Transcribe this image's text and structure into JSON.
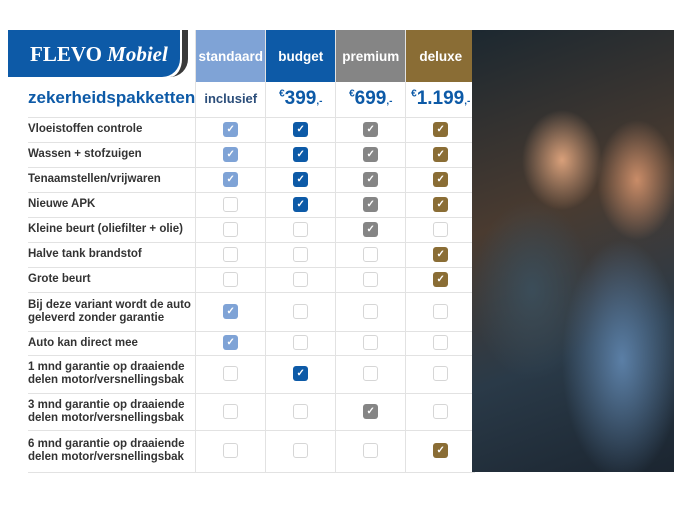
{
  "logo": {
    "brand": "FLEVO",
    "brand_italic": "Mobiel"
  },
  "title": "zekerheidspakketten",
  "colors": {
    "standaard": "#7fa3d6",
    "budget": "#0d5aa7",
    "premium": "#858585",
    "deluxe": "#8a6d35"
  },
  "columns": [
    {
      "key": "standaard",
      "label": "standaard",
      "price": "inclusief"
    },
    {
      "key": "budget",
      "label": "budget",
      "currency": "€",
      "price": "399",
      "suffix": ",-"
    },
    {
      "key": "premium",
      "label": "premium",
      "currency": "€",
      "price": "699",
      "suffix": ",-"
    },
    {
      "key": "deluxe",
      "label": "deluxe",
      "currency": "€",
      "price": "1.199",
      "suffix": ",-"
    }
  ],
  "rows": [
    {
      "label": "Vloeistoffen controle",
      "checks": [
        true,
        true,
        true,
        true
      ]
    },
    {
      "label": "Wassen + stofzuigen",
      "checks": [
        true,
        true,
        true,
        true
      ]
    },
    {
      "label": "Tenaamstellen/vrijwaren",
      "checks": [
        true,
        true,
        true,
        true
      ]
    },
    {
      "label": "Nieuwe APK",
      "checks": [
        false,
        true,
        true,
        true
      ]
    },
    {
      "label": "Kleine beurt (oliefilter + olie)",
      "checks": [
        false,
        false,
        true,
        false
      ]
    },
    {
      "label": "Halve tank brandstof",
      "checks": [
        false,
        false,
        false,
        true
      ]
    },
    {
      "label": "Grote beurt",
      "checks": [
        false,
        false,
        false,
        true
      ]
    },
    {
      "label": "Bij deze variant wordt de auto geleverd zonder garantie",
      "checks": [
        true,
        false,
        false,
        false
      ]
    },
    {
      "label": "Auto kan direct mee",
      "checks": [
        true,
        false,
        false,
        false
      ]
    },
    {
      "label": "1 mnd garantie op draaiende delen motor/versnellingsbak",
      "checks": [
        false,
        true,
        false,
        false
      ]
    },
    {
      "label": "3 mnd garantie op draaiende delen motor/versnellingsbak",
      "checks": [
        false,
        false,
        true,
        false
      ]
    },
    {
      "label": "6 mnd garantie op draaiende delen motor/versnellingsbak",
      "checks": [
        false,
        false,
        false,
        true
      ]
    }
  ],
  "photo": {
    "icon": "couple-in-car-photo"
  }
}
